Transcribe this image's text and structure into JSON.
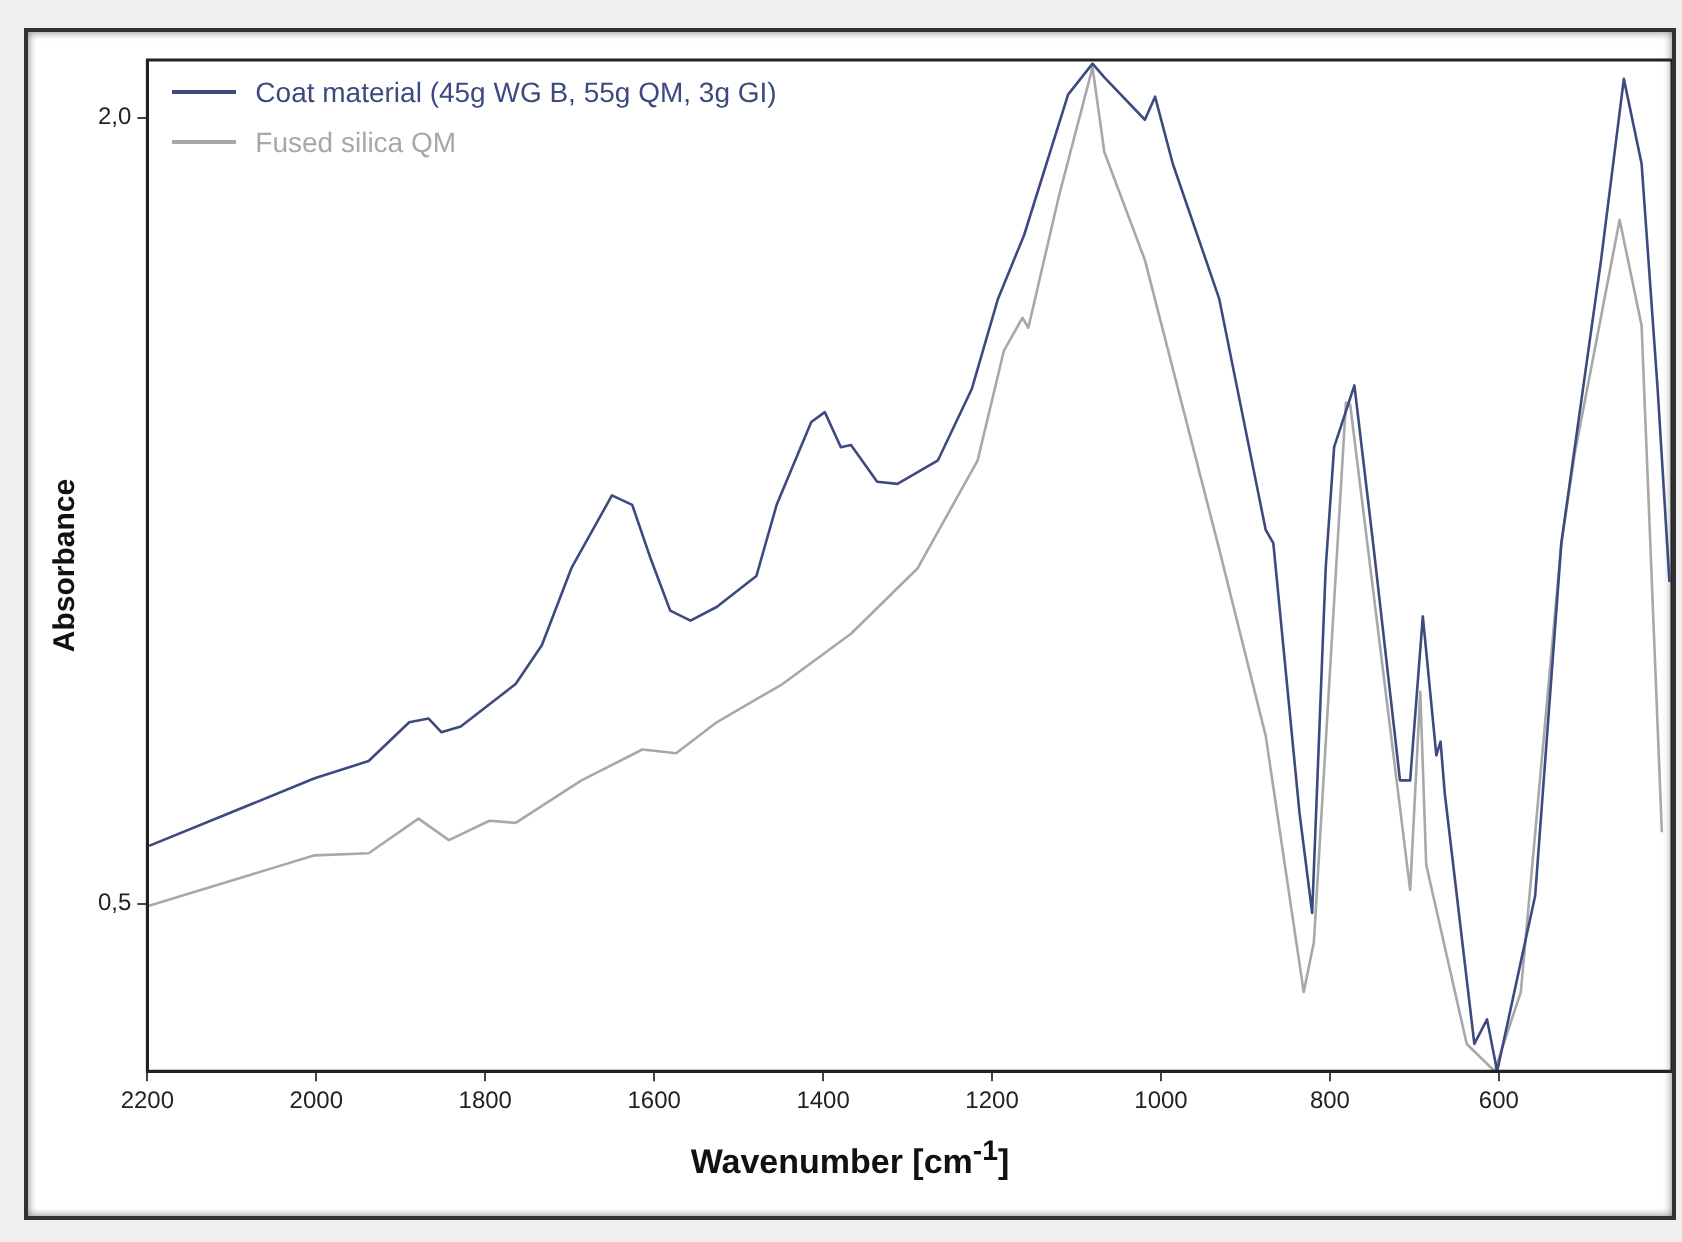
{
  "chart_data": {
    "type": "line",
    "xlabel": "Wavenumber [cm$^{-1}$]",
    "ylabel": "Absorbance",
    "xlim": [
      2200,
      395
    ],
    "xticks": [
      2200,
      2000,
      1800,
      1600,
      1400,
      1200,
      1000,
      800,
      600
    ],
    "ylim": [
      0.18,
      2.11
    ],
    "yticks": [
      {
        "value": 2.0,
        "label": "2,0"
      },
      {
        "value": 0.5,
        "label": "0,5"
      }
    ],
    "grid": false,
    "legend": "top left",
    "marker": "none",
    "line_style": "solid",
    "series": [
      {
        "name": "Coat material (45g WG B, 55g QM, 3g GI)",
        "color": "#3d4a80",
        "x": [
          2198,
          2002,
          1938,
          1890,
          1867,
          1852,
          1829,
          1764,
          1733,
          1698,
          1650,
          1626,
          1605,
          1581,
          1557,
          1526,
          1479,
          1455,
          1414,
          1398,
          1379,
          1367,
          1336,
          1312,
          1264,
          1224,
          1193,
          1162,
          1110,
          1081,
          1067,
          1019,
          1007,
          986,
          931,
          876,
          867,
          836,
          821,
          805,
          795,
          771,
          748,
          717,
          705,
          690,
          674,
          669,
          664,
          629,
          614,
          602,
          557,
          526,
          479,
          452,
          431,
          412,
          398
        ],
        "values": [
          0.61,
          0.739,
          0.772,
          0.846,
          0.853,
          0.827,
          0.838,
          0.919,
          0.993,
          1.14,
          1.279,
          1.261,
          1.162,
          1.059,
          1.04,
          1.066,
          1.125,
          1.261,
          1.419,
          1.438,
          1.371,
          1.375,
          1.305,
          1.301,
          1.346,
          1.482,
          1.654,
          1.776,
          2.044,
          2.103,
          2.077,
          1.996,
          2.04,
          1.912,
          1.654,
          1.213,
          1.188,
          0.673,
          0.482,
          1.14,
          1.371,
          1.489,
          1.176,
          0.735,
          0.735,
          1.048,
          0.783,
          0.809,
          0.71,
          0.232,
          0.279,
          0.18,
          0.515,
          1.188,
          1.728,
          2.074,
          1.912,
          1.482,
          1.114
        ]
      },
      {
        "name": "Fused silica QM",
        "color": "#a8a8a8",
        "x": [
          2198,
          2002,
          1938,
          1879,
          1843,
          1795,
          1764,
          1686,
          1614,
          1574,
          1526,
          1448,
          1367,
          1288,
          1217,
          1186,
          1164,
          1157,
          1121,
          1081,
          1067,
          1019,
          931,
          876,
          831,
          819,
          781,
          776,
          705,
          693,
          686,
          638,
          605,
          574,
          526,
          510,
          457,
          431,
          407
        ],
        "values": [
          0.496,
          0.592,
          0.596,
          0.662,
          0.621,
          0.658,
          0.654,
          0.735,
          0.794,
          0.787,
          0.846,
          0.919,
          1.015,
          1.14,
          1.346,
          1.555,
          1.618,
          1.599,
          1.849,
          2.096,
          1.934,
          1.728,
          1.176,
          0.82,
          0.331,
          0.426,
          1.456,
          1.452,
          0.526,
          0.904,
          0.574,
          0.232,
          0.18,
          0.331,
          1.188,
          1.36,
          1.805,
          1.603,
          0.636
        ]
      }
    ]
  }
}
